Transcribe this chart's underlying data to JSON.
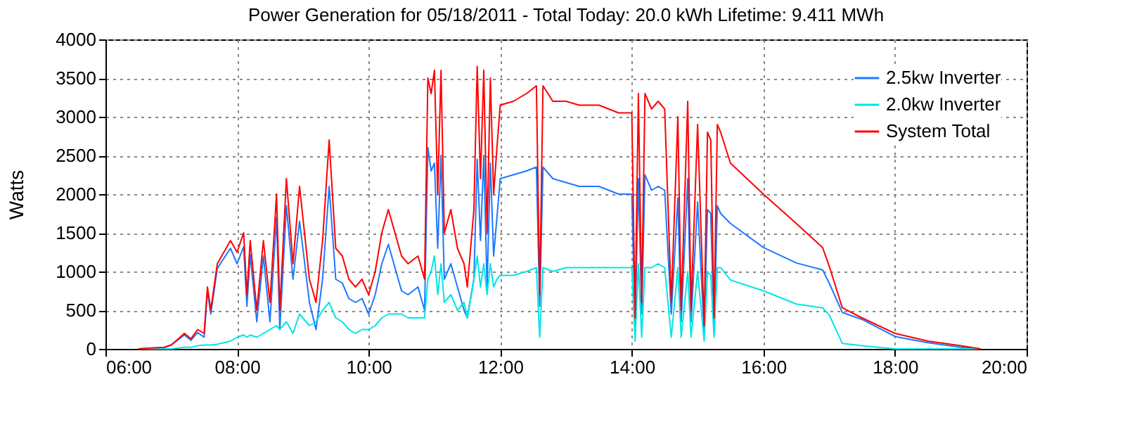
{
  "chart_data": {
    "type": "line",
    "title": "Power Generation for 05/18/2011 - Total Today: 20.0 kWh   Lifetime: 9.411 MWh",
    "ylabel": "Watts",
    "x": [
      6.5,
      6.9,
      7.0,
      7.2,
      7.3,
      7.4,
      7.5,
      7.55,
      7.6,
      7.7,
      7.8,
      7.9,
      8.0,
      8.1,
      8.15,
      8.2,
      8.3,
      8.4,
      8.5,
      8.6,
      8.65,
      8.75,
      8.85,
      8.95,
      9.0,
      9.1,
      9.2,
      9.3,
      9.4,
      9.5,
      9.6,
      9.7,
      9.8,
      9.9,
      10.0,
      10.1,
      10.2,
      10.3,
      10.4,
      10.5,
      10.6,
      10.75,
      10.85,
      10.9,
      10.95,
      11.0,
      11.05,
      11.1,
      11.15,
      11.25,
      11.35,
      11.45,
      11.5,
      11.6,
      11.65,
      11.7,
      11.75,
      11.8,
      11.85,
      11.9,
      11.95,
      12.0,
      12.2,
      12.4,
      12.55,
      12.6,
      12.65,
      12.8,
      13.0,
      13.2,
      13.5,
      13.8,
      14.0,
      14.05,
      14.1,
      14.15,
      14.2,
      14.3,
      14.4,
      14.5,
      14.6,
      14.7,
      14.75,
      14.85,
      14.9,
      15.0,
      15.1,
      15.15,
      15.2,
      15.25,
      15.3,
      15.35,
      15.5,
      16.0,
      16.5,
      16.9,
      17.0,
      17.2,
      17.5,
      18.0,
      18.5,
      19.0,
      19.3
    ],
    "series": [
      {
        "name": "2.5kw Inverter",
        "color": "#1e78ff",
        "values": [
          0,
          20,
          50,
          180,
          110,
          210,
          150,
          750,
          450,
          1040,
          1170,
          1300,
          1100,
          1320,
          550,
          1220,
          350,
          1200,
          350,
          1700,
          250,
          1850,
          900,
          1650,
          1300,
          600,
          250,
          900,
          2100,
          900,
          850,
          650,
          600,
          650,
          450,
          700,
          1100,
          1350,
          1050,
          750,
          700,
          800,
          500,
          2600,
          2300,
          2400,
          1300,
          2500,
          900,
          1100,
          800,
          500,
          400,
          900,
          2450,
          1400,
          2500,
          800,
          2400,
          1200,
          1700,
          2200,
          2250,
          2300,
          2350,
          550,
          2350,
          2200,
          2150,
          2100,
          2100,
          2000,
          2000,
          300,
          2200,
          450,
          2250,
          2050,
          2100,
          2050,
          450,
          1950,
          350,
          2200,
          350,
          1900,
          200,
          1800,
          1750,
          250,
          1850,
          1750,
          1620,
          1310,
          1110,
          1020,
          850,
          470,
          380,
          160,
          80,
          20,
          0
        ]
      },
      {
        "name": "2.0kw Inverter",
        "color": "#00e5e5",
        "values": [
          0,
          0,
          0,
          20,
          20,
          40,
          50,
          50,
          50,
          60,
          80,
          100,
          150,
          180,
          150,
          180,
          150,
          200,
          250,
          300,
          250,
          350,
          200,
          450,
          400,
          300,
          350,
          500,
          600,
          400,
          350,
          250,
          200,
          250,
          250,
          300,
          400,
          450,
          450,
          450,
          400,
          400,
          400,
          900,
          1000,
          1200,
          700,
          1100,
          600,
          700,
          500,
          600,
          400,
          900,
          1200,
          800,
          1100,
          700,
          1100,
          800,
          900,
          950,
          950,
          1000,
          1050,
          150,
          1050,
          1000,
          1050,
          1050,
          1050,
          1050,
          1050,
          100,
          1100,
          150,
          1050,
          1050,
          1100,
          1050,
          150,
          1050,
          150,
          1000,
          150,
          1000,
          100,
          1000,
          950,
          150,
          1050,
          1050,
          890,
          750,
          580,
          530,
          440,
          70,
          40,
          0,
          0,
          0,
          0
        ]
      },
      {
        "name": "System Total",
        "color": "#ff0000",
        "values": [
          0,
          20,
          50,
          200,
          130,
          250,
          200,
          800,
          500,
          1100,
          1250,
          1400,
          1250,
          1500,
          700,
          1400,
          500,
          1400,
          600,
          2000,
          500,
          2200,
          1100,
          2100,
          1700,
          900,
          600,
          1400,
          2700,
          1300,
          1200,
          900,
          800,
          900,
          700,
          1000,
          1500,
          1800,
          1500,
          1200,
          1100,
          1200,
          900,
          3500,
          3300,
          3600,
          2000,
          3600,
          1500,
          1800,
          1300,
          1100,
          800,
          1800,
          3650,
          2200,
          3600,
          1500,
          3500,
          2000,
          2600,
          3150,
          3200,
          3300,
          3400,
          700,
          3400,
          3200,
          3200,
          3150,
          3150,
          3050,
          3050,
          400,
          3300,
          600,
          3300,
          3100,
          3200,
          3100,
          600,
          3000,
          500,
          3200,
          500,
          2900,
          300,
          2800,
          2700,
          400,
          2900,
          2800,
          2400,
          2000,
          1620,
          1310,
          1070,
          530,
          400,
          200,
          100,
          40,
          0
        ]
      }
    ],
    "xlim": [
      6,
      20
    ],
    "xticks": [
      {
        "value": 6,
        "label": "06:00"
      },
      {
        "value": 8,
        "label": "08:00"
      },
      {
        "value": 10,
        "label": "10:00"
      },
      {
        "value": 12,
        "label": "12:00"
      },
      {
        "value": 14,
        "label": "14:00"
      },
      {
        "value": 16,
        "label": "16:00"
      },
      {
        "value": 18,
        "label": "18:00"
      },
      {
        "value": 20,
        "label": "20:00"
      }
    ],
    "ylim": [
      0,
      4000
    ],
    "yticks": [
      0,
      500,
      1000,
      1500,
      2000,
      2500,
      3000,
      3500,
      4000
    ],
    "grid": true,
    "legend": "top right",
    "marker": "none",
    "line_style": "solid"
  }
}
